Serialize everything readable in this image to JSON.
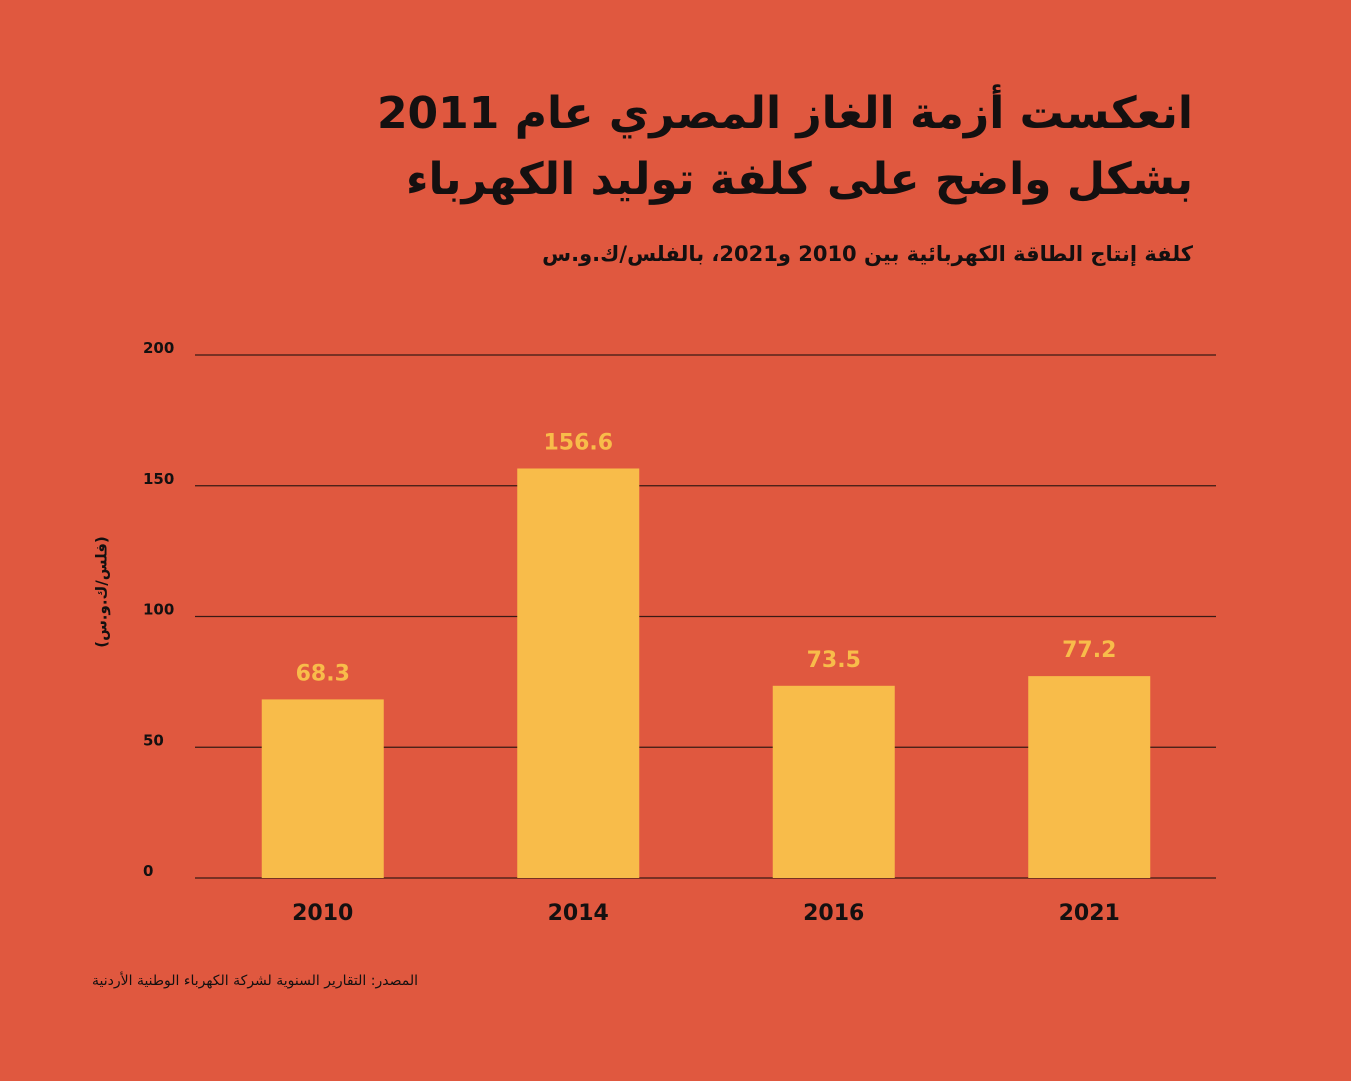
{
  "colors": {
    "background": "#E0583F",
    "bar": "#F8BC4A",
    "value_label": "#F8BC4A",
    "text": "#141010",
    "gridline": "#3a1a14"
  },
  "header": {
    "title_line_1": "انعكست أزمة الغاز المصري عام 2011",
    "title_line_2": "بشكل واضح على كلفة توليد الكهرباء",
    "subtitle": "كلفة إنتاج الطاقة الكهربائية بين 2010 و2021، بالفلس/ك.و.س"
  },
  "footer": {
    "source": "المصدر: التقارير السنوية لشركة الكهرباء الوطنية الأردنية"
  },
  "chart_data": {
    "type": "bar",
    "categories": [
      "2010",
      "2014",
      "2016",
      "2021"
    ],
    "values": [
      68.3,
      156.6,
      73.5,
      77.2
    ],
    "value_labels": [
      "68.3",
      "156.6",
      "73.5",
      "77.2"
    ],
    "ylabel": "(فلس/ك.و.س)",
    "ylim": [
      0,
      200
    ],
    "yticks": [
      0,
      50,
      100,
      150,
      200
    ],
    "grid": true
  }
}
